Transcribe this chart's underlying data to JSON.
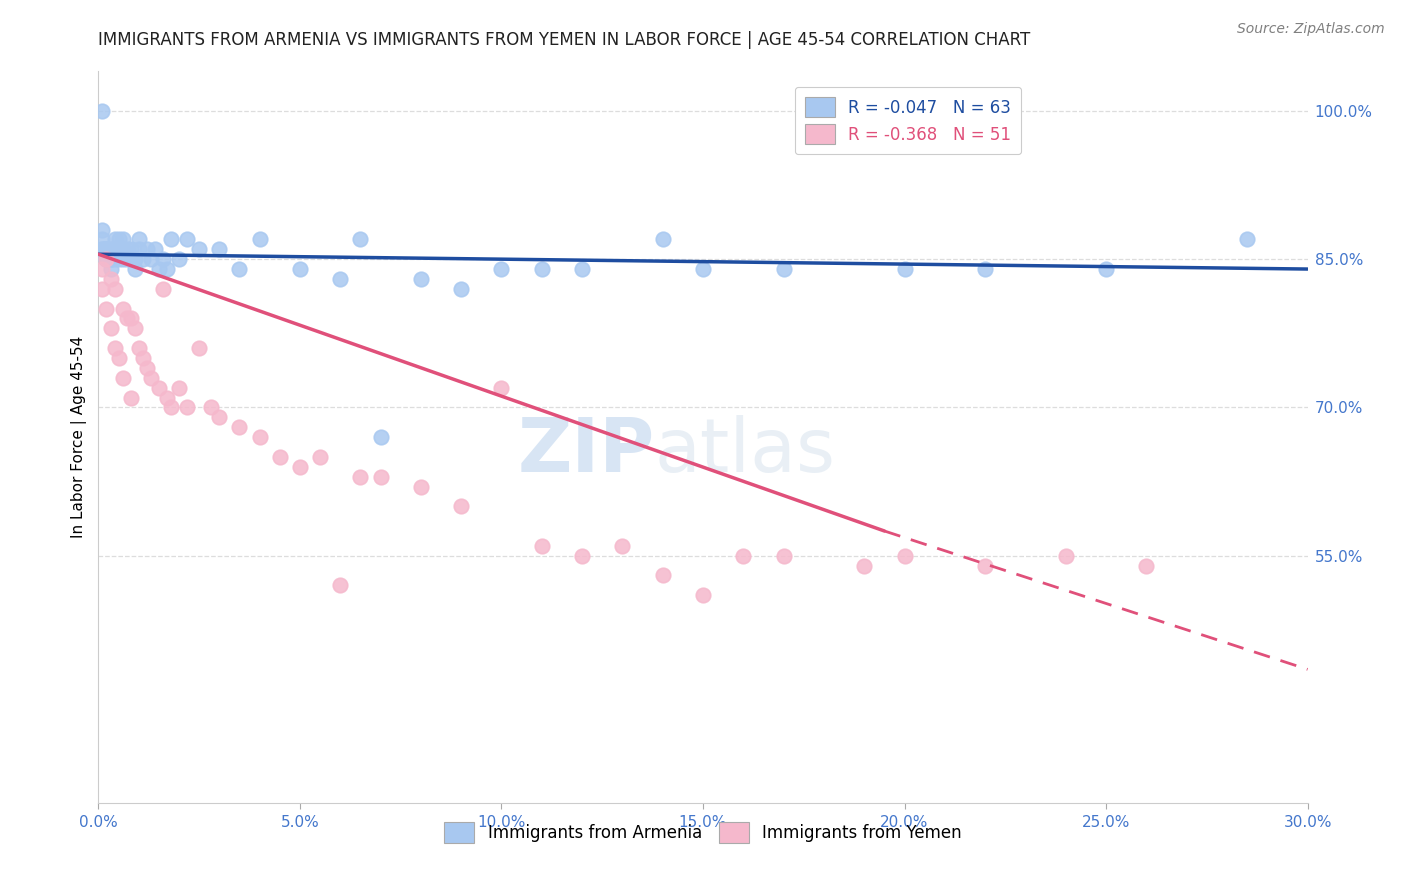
{
  "title": "IMMIGRANTS FROM ARMENIA VS IMMIGRANTS FROM YEMEN IN LABOR FORCE | AGE 45-54 CORRELATION CHART",
  "source": "Source: ZipAtlas.com",
  "ylabel": "In Labor Force | Age 45-54",
  "xlim": [
    0.0,
    0.3
  ],
  "ylim": [
    0.3,
    1.04
  ],
  "xticks": [
    0.0,
    0.05,
    0.1,
    0.15,
    0.2,
    0.25,
    0.3
  ],
  "yticks_right": [
    1.0,
    0.85,
    0.7,
    0.55
  ],
  "armenia_color": "#A8C8F0",
  "yemen_color": "#F5B8CC",
  "armenia_R": -0.047,
  "armenia_N": 63,
  "yemen_R": -0.368,
  "yemen_N": 51,
  "trend_blue": "#1E4DA0",
  "trend_pink": "#E0507A",
  "watermark_zip": "ZIP",
  "watermark_atlas": "atlas",
  "grid_color": "#DDDDDD",
  "title_color": "#222222",
  "axis_label_color": "#4477CC",
  "armenia_x": [
    0.001,
    0.001,
    0.001,
    0.001,
    0.001,
    0.002,
    0.002,
    0.002,
    0.002,
    0.002,
    0.002,
    0.003,
    0.003,
    0.003,
    0.003,
    0.003,
    0.004,
    0.004,
    0.004,
    0.005,
    0.005,
    0.005,
    0.006,
    0.006,
    0.006,
    0.007,
    0.007,
    0.008,
    0.008,
    0.009,
    0.009,
    0.01,
    0.01,
    0.011,
    0.012,
    0.013,
    0.014,
    0.015,
    0.016,
    0.017,
    0.018,
    0.02,
    0.022,
    0.025,
    0.03,
    0.035,
    0.04,
    0.05,
    0.06,
    0.065,
    0.07,
    0.08,
    0.09,
    0.1,
    0.11,
    0.12,
    0.14,
    0.15,
    0.17,
    0.2,
    0.22,
    0.25,
    0.285
  ],
  "armenia_y": [
    1.0,
    0.88,
    0.87,
    0.86,
    0.86,
    0.86,
    0.86,
    0.85,
    0.85,
    0.86,
    0.86,
    0.86,
    0.86,
    0.85,
    0.85,
    0.84,
    0.87,
    0.86,
    0.85,
    0.87,
    0.86,
    0.85,
    0.87,
    0.86,
    0.85,
    0.86,
    0.85,
    0.86,
    0.85,
    0.85,
    0.84,
    0.87,
    0.86,
    0.85,
    0.86,
    0.85,
    0.86,
    0.84,
    0.85,
    0.84,
    0.87,
    0.85,
    0.87,
    0.86,
    0.86,
    0.84,
    0.87,
    0.84,
    0.83,
    0.87,
    0.67,
    0.83,
    0.82,
    0.84,
    0.84,
    0.84,
    0.87,
    0.84,
    0.84,
    0.84,
    0.84,
    0.84,
    0.87
  ],
  "yemen_x": [
    0.001,
    0.001,
    0.002,
    0.002,
    0.003,
    0.003,
    0.004,
    0.004,
    0.005,
    0.006,
    0.006,
    0.007,
    0.008,
    0.008,
    0.009,
    0.01,
    0.011,
    0.012,
    0.013,
    0.015,
    0.016,
    0.017,
    0.018,
    0.02,
    0.022,
    0.025,
    0.028,
    0.03,
    0.035,
    0.04,
    0.045,
    0.05,
    0.055,
    0.06,
    0.065,
    0.07,
    0.08,
    0.09,
    0.1,
    0.11,
    0.12,
    0.13,
    0.14,
    0.15,
    0.16,
    0.17,
    0.19,
    0.2,
    0.22,
    0.24,
    0.26
  ],
  "yemen_y": [
    0.84,
    0.82,
    0.85,
    0.8,
    0.83,
    0.78,
    0.82,
    0.76,
    0.75,
    0.8,
    0.73,
    0.79,
    0.79,
    0.71,
    0.78,
    0.76,
    0.75,
    0.74,
    0.73,
    0.72,
    0.82,
    0.71,
    0.7,
    0.72,
    0.7,
    0.76,
    0.7,
    0.69,
    0.68,
    0.67,
    0.65,
    0.64,
    0.65,
    0.52,
    0.63,
    0.63,
    0.62,
    0.6,
    0.72,
    0.56,
    0.55,
    0.56,
    0.53,
    0.51,
    0.55,
    0.55,
    0.54,
    0.55,
    0.54,
    0.55,
    0.54
  ],
  "arm_trend_x0": 0.0,
  "arm_trend_y0": 0.855,
  "arm_trend_x1": 0.3,
  "arm_trend_y1": 0.84,
  "yem_trend_x0": 0.0,
  "yem_trend_y0": 0.855,
  "yem_trend_x1_solid": 0.195,
  "yem_trend_y1_solid": 0.575,
  "yem_trend_x1_dash": 0.3,
  "yem_trend_y1_dash": 0.435
}
